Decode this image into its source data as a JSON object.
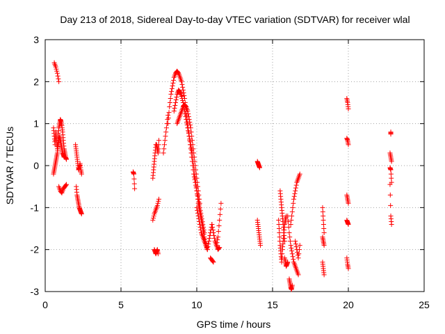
{
  "chart_data": {
    "type": "scatter",
    "title": "Day 213 of 2018, Sidereal Day-to-day VTEC variation (SDTVAR) for receiver wlal",
    "xlabel": "GPS time / hours",
    "ylabel": "SDTVAR / TECUs",
    "xlim": [
      0,
      25
    ],
    "ylim": [
      -3,
      3
    ],
    "xticks": [
      0,
      5,
      10,
      15,
      20,
      25
    ],
    "yticks": [
      -3,
      -2,
      -1,
      0,
      1,
      2,
      3
    ],
    "grid": true,
    "marker": "+",
    "marker_color": "#ff0000",
    "segments": [
      {
        "x": [
          0.6,
          0.7,
          0.8,
          0.9
        ],
        "y": [
          2.45,
          2.35,
          2.2,
          2.0
        ]
      },
      {
        "x": [
          0.55,
          0.6,
          0.65,
          0.7,
          0.75,
          0.8,
          0.85,
          0.9,
          0.95,
          1.0,
          1.05,
          1.1,
          1.15,
          1.2,
          1.25,
          1.3,
          1.35,
          1.4
        ],
        "y": [
          0.9,
          0.7,
          0.5,
          0.8,
          0.6,
          0.4,
          0.7,
          0.9,
          1.0,
          1.1,
          1.05,
          0.95,
          0.8,
          0.6,
          0.4,
          0.3,
          0.2,
          0.15
        ]
      },
      {
        "x": [
          0.55,
          0.6,
          0.65,
          0.7,
          0.75,
          0.8,
          0.85,
          0.9,
          0.95,
          1.0,
          1.05,
          1.1,
          1.15,
          1.2,
          1.25,
          1.3
        ],
        "y": [
          -0.2,
          -0.1,
          0.0,
          0.1,
          0.2,
          0.3,
          0.45,
          0.6,
          0.7,
          0.6,
          0.5,
          0.4,
          0.3,
          0.25,
          0.2,
          0.2
        ]
      },
      {
        "x": [
          0.9,
          1.0,
          1.1,
          1.2,
          1.3,
          1.4
        ],
        "y": [
          -0.5,
          -0.6,
          -0.65,
          -0.55,
          -0.5,
          -0.45
        ]
      },
      {
        "x": [
          2.0,
          2.05,
          2.1,
          2.15,
          2.2,
          2.25,
          2.3,
          2.35,
          2.4
        ],
        "y": [
          0.5,
          0.35,
          0.2,
          0.05,
          -0.1,
          -0.05,
          0.05,
          -0.1,
          -0.2
        ]
      },
      {
        "x": [
          2.05,
          2.1,
          2.15,
          2.2,
          2.25,
          2.3,
          2.35,
          2.4
        ],
        "y": [
          -0.5,
          -0.7,
          -0.8,
          -0.9,
          -1.0,
          -1.05,
          -1.1,
          -1.15
        ]
      },
      {
        "x": [
          5.8,
          5.85,
          5.9
        ],
        "y": [
          -0.15,
          -0.2,
          -0.55
        ]
      },
      {
        "x": [
          7.1,
          7.2,
          7.3,
          7.4,
          7.5
        ],
        "y": [
          -1.3,
          -1.15,
          -1.05,
          -0.95,
          -0.8
        ]
      },
      {
        "x": [
          7.1,
          7.15,
          7.2,
          7.25,
          7.3,
          7.35,
          7.4,
          7.45,
          7.5
        ],
        "y": [
          -0.3,
          -0.1,
          0.1,
          0.3,
          0.5,
          0.5,
          0.4,
          0.3,
          0.6
        ]
      },
      {
        "x": [
          7.2,
          7.25,
          7.3,
          7.35,
          7.4,
          7.45
        ],
        "y": [
          -2.0,
          -2.05,
          -2.1,
          -2.05,
          -2.0,
          -2.1
        ]
      },
      {
        "x": [
          7.8,
          7.9,
          8.0,
          8.1
        ],
        "y": [
          0.3,
          0.6,
          0.9,
          1.2
        ]
      },
      {
        "x": [
          8.1,
          8.2,
          8.3,
          8.4,
          8.5,
          8.6,
          8.7,
          8.8,
          8.9,
          9.0,
          9.1,
          9.2,
          9.3,
          9.4,
          9.5,
          9.6,
          9.7,
          9.8,
          9.9,
          10.0,
          10.1,
          10.2,
          10.3,
          10.4,
          10.5
        ],
        "y": [
          1.0,
          1.4,
          1.7,
          1.9,
          2.1,
          2.2,
          2.25,
          2.2,
          2.1,
          2.0,
          1.8,
          1.6,
          1.3,
          1.0,
          0.7,
          0.4,
          0.1,
          -0.2,
          -0.4,
          -0.6,
          -0.8,
          -1.0,
          -1.2,
          -1.4,
          -1.6
        ]
      },
      {
        "x": [
          8.5,
          8.6,
          8.7,
          8.8,
          8.9,
          9.0,
          9.1,
          9.2,
          9.3,
          9.4,
          9.5,
          9.6,
          9.7,
          9.8,
          9.9,
          10.0,
          10.1,
          10.2,
          10.3,
          10.4,
          10.5,
          10.6,
          10.7
        ],
        "y": [
          1.3,
          1.5,
          1.7,
          1.8,
          1.75,
          1.65,
          1.5,
          1.3,
          1.1,
          0.9,
          0.7,
          0.5,
          0.3,
          0.0,
          -0.3,
          -0.6,
          -0.9,
          -1.1,
          -1.3,
          -1.5,
          -1.7,
          -1.85,
          -2.0
        ]
      },
      {
        "x": [
          8.7,
          8.8,
          8.9,
          9.0,
          9.1,
          9.2,
          9.3,
          9.4,
          9.5,
          9.6,
          9.7,
          9.8,
          9.9,
          10.0,
          10.1,
          10.2
        ],
        "y": [
          1.0,
          1.1,
          1.2,
          1.3,
          1.4,
          1.45,
          1.4,
          1.3,
          1.1,
          0.9,
          0.6,
          0.3,
          0.0,
          -0.3,
          -0.6,
          -0.9
        ]
      },
      {
        "x": [
          10.0,
          10.1,
          10.2,
          10.3,
          10.4,
          10.5,
          10.6,
          10.7,
          10.8,
          10.9,
          11.0
        ],
        "y": [
          -1.0,
          -1.2,
          -1.4,
          -1.6,
          -1.7,
          -1.8,
          -1.9,
          -2.0,
          -1.8,
          -1.6,
          -1.4
        ]
      },
      {
        "x": [
          10.9,
          11.0,
          11.1
        ],
        "y": [
          -2.2,
          -2.25,
          -2.3
        ]
      },
      {
        "x": [
          11.0,
          11.1,
          11.2,
          11.3,
          11.4,
          11.5,
          11.6
        ],
        "y": [
          -1.4,
          -1.6,
          -1.8,
          -1.9,
          -1.7,
          -1.3,
          -0.9
        ]
      },
      {
        "x": [
          11.3,
          11.4,
          11.5
        ],
        "y": [
          -1.9,
          -2.0,
          -1.95
        ]
      },
      {
        "x": [
          14.0,
          14.05,
          14.1,
          14.15
        ],
        "y": [
          0.1,
          0.05,
          0.0,
          -0.05
        ]
      },
      {
        "x": [
          14.0,
          14.05,
          14.1,
          14.15,
          14.2
        ],
        "y": [
          -1.3,
          -1.45,
          -1.6,
          -1.75,
          -1.9
        ]
      },
      {
        "x": [
          15.4,
          15.45,
          15.5,
          15.55,
          15.6,
          15.65,
          15.7,
          15.75,
          15.8,
          15.85,
          15.9
        ],
        "y": [
          -1.3,
          -1.6,
          -1.9,
          -2.1,
          -2.3,
          -2.0,
          -1.8,
          -1.6,
          -1.4,
          -1.3,
          -1.2
        ]
      },
      {
        "x": [
          15.5,
          15.55,
          15.6,
          15.65,
          15.7,
          15.75,
          15.8
        ],
        "y": [
          -0.6,
          -0.8,
          -1.0,
          -1.2,
          -1.4,
          -1.6,
          -1.8
        ]
      },
      {
        "x": [
          15.8,
          15.85,
          15.9,
          15.95,
          16.0
        ],
        "y": [
          -2.2,
          -2.3,
          -2.4,
          -2.35,
          -2.3
        ]
      },
      {
        "x": [
          16.1,
          16.15,
          16.2,
          16.25,
          16.3
        ],
        "y": [
          -2.7,
          -2.8,
          -2.9,
          -2.95,
          -2.85
        ]
      },
      {
        "x": [
          16.0,
          16.1,
          16.2,
          16.3,
          16.4,
          16.5,
          16.6,
          16.7
        ],
        "y": [
          -1.2,
          -1.6,
          -1.9,
          -2.1,
          -2.3,
          -2.4,
          -2.5,
          -2.6
        ]
      },
      {
        "x": [
          16.2,
          16.3,
          16.4,
          16.5,
          16.6,
          16.7,
          16.8
        ],
        "y": [
          -1.4,
          -1.1,
          -0.8,
          -0.6,
          -0.4,
          -0.3,
          -0.2
        ]
      },
      {
        "x": [
          16.5,
          16.6,
          16.7,
          16.8
        ],
        "y": [
          -1.8,
          -2.0,
          -2.2,
          -1.9
        ]
      },
      {
        "x": [
          18.3,
          18.35,
          18.4
        ],
        "y": [
          -1.0,
          -1.3,
          -1.6
        ]
      },
      {
        "x": [
          18.3,
          18.35,
          18.4
        ],
        "y": [
          -1.7,
          -1.8,
          -1.9
        ]
      },
      {
        "x": [
          18.3,
          18.35,
          18.4
        ],
        "y": [
          -2.3,
          -2.45,
          -2.6
        ]
      },
      {
        "x": [
          19.9,
          19.95,
          20.0
        ],
        "y": [
          1.6,
          1.5,
          1.35
        ]
      },
      {
        "x": [
          19.9,
          19.95,
          20.0
        ],
        "y": [
          0.65,
          0.6,
          0.5
        ]
      },
      {
        "x": [
          19.9,
          19.95,
          20.0
        ],
        "y": [
          -0.7,
          -0.8,
          -0.9
        ]
      },
      {
        "x": [
          19.9,
          19.95,
          20.0
        ],
        "y": [
          -1.3,
          -1.35,
          -1.4
        ]
      },
      {
        "x": [
          19.9,
          19.95,
          20.0
        ],
        "y": [
          -2.2,
          -2.35,
          -2.45
        ]
      },
      {
        "x": [
          22.8,
          22.8
        ],
        "y": [
          0.75,
          0.8
        ]
      },
      {
        "x": [
          22.75,
          22.8,
          22.85
        ],
        "y": [
          0.3,
          0.2,
          0.1
        ]
      },
      {
        "x": [
          22.75,
          22.8,
          22.85
        ],
        "y": [
          -0.05,
          -0.1,
          -0.4
        ]
      },
      {
        "x": [
          22.75,
          22.8,
          22.85
        ],
        "y": [
          -0.45,
          -1.2,
          -1.4
        ]
      }
    ]
  }
}
